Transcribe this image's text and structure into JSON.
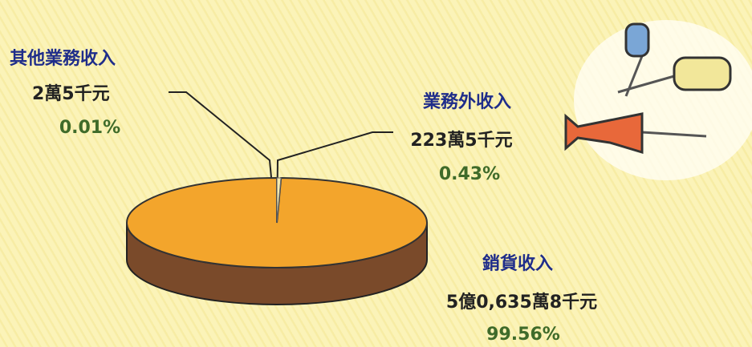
{
  "chart_data": {
    "type": "pie",
    "categories": [
      "銷貨收入",
      "業務外收入",
      "其他業務收入"
    ],
    "values": [
      99.56,
      0.43,
      0.01
    ],
    "value_labels": [
      "99.56%",
      "0.43%",
      "0.01%"
    ],
    "amount_labels": [
      "5億0,635萬8千元",
      "223萬5千元",
      "2萬5千元"
    ],
    "colors": [
      "#f3a52c",
      "#f6ecb0",
      "#fbf6d2"
    ],
    "side_color": "#7a4a2a"
  }
}
